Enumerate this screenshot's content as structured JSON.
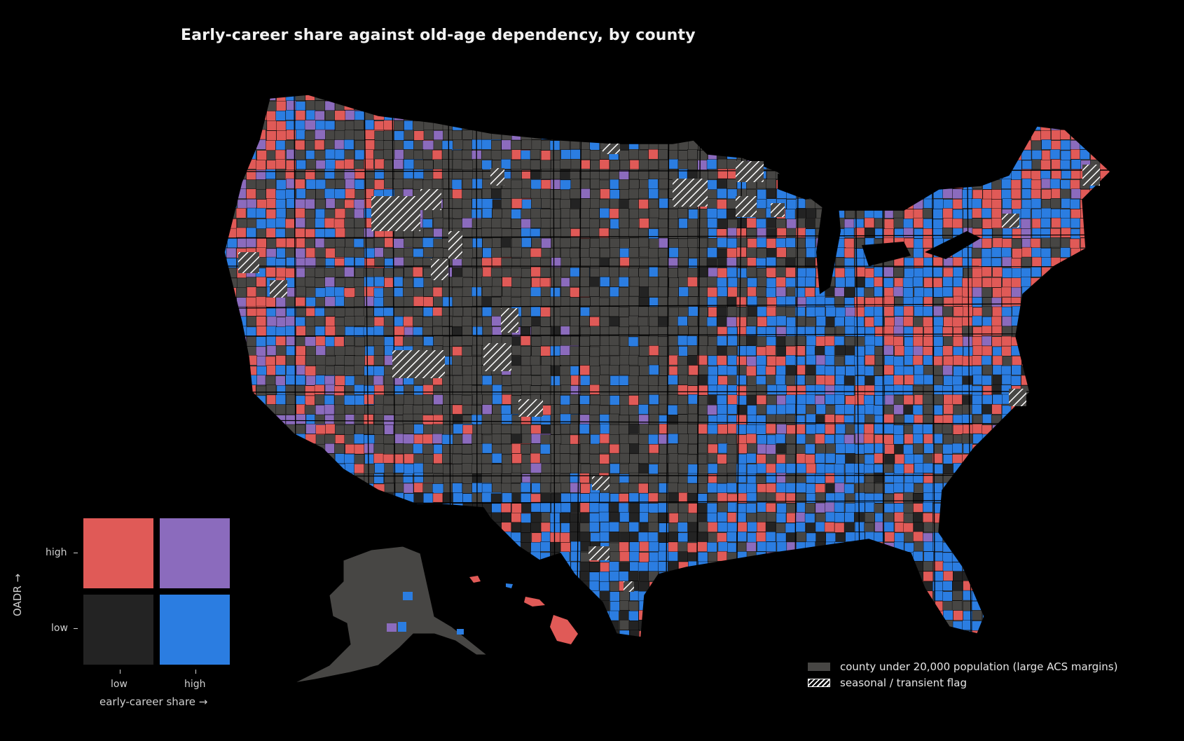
{
  "title": "Early-career share against old-age dependency, by county",
  "bivariate_legend": {
    "x_axis_label": "early-career share →",
    "y_axis_label": "OADR →",
    "x_ticks": [
      "low",
      "high"
    ],
    "y_ticks": [
      "high",
      "low"
    ],
    "colors": {
      "low_early_high_oadr": "#e05a57",
      "high_early_high_oadr": "#8b6bbd",
      "low_early_low_oadr": "#232323",
      "high_early_low_oadr": "#2b7de1"
    }
  },
  "legend": {
    "small_county_label": "county under 20,000 population (large ACS margins)",
    "seasonal_label": "seasonal / transient flag",
    "small_county_color": "#474644"
  },
  "colors": {
    "background": "#000000",
    "state_border": "#000000"
  }
}
